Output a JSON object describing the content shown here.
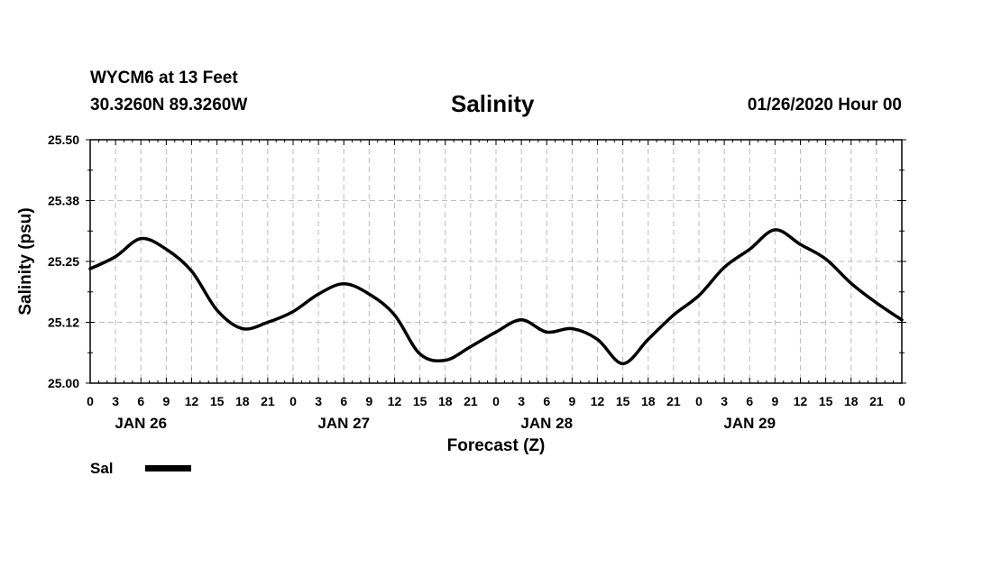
{
  "header": {
    "station": "WYCM6 at 13 Feet",
    "coords": "30.3260N 89.3260W",
    "title": "Salinity",
    "run": "01/26/2020 Hour 00"
  },
  "legend": {
    "label": "Sal"
  },
  "chart_data": {
    "type": "line",
    "title": "Salinity",
    "xlabel": "Forecast (Z)",
    "ylabel": "Salinity (psu)",
    "ylim": [
      25.0,
      25.5
    ],
    "xlim": [
      0,
      96
    ],
    "grid": true,
    "legend_position": "bottom-left",
    "yticks": [
      "25.00",
      "25.12",
      "25.25",
      "25.38",
      "25.50"
    ],
    "xtick_labels": [
      "0",
      "3",
      "6",
      "9",
      "12",
      "15",
      "18",
      "21",
      "0",
      "3",
      "6",
      "9",
      "12",
      "15",
      "18",
      "21",
      "0",
      "3",
      "6",
      "9",
      "12",
      "15",
      "18",
      "21",
      "0",
      "3",
      "6",
      "9",
      "12",
      "15",
      "18",
      "21",
      "0"
    ],
    "day_labels": [
      {
        "hour": 6,
        "label": "JAN 26"
      },
      {
        "hour": 30,
        "label": "JAN 27"
      },
      {
        "hour": 54,
        "label": "JAN 28"
      },
      {
        "hour": 78,
        "label": "JAN 29"
      }
    ],
    "series": [
      {
        "name": "Sal",
        "color": "#000000",
        "x": [
          0,
          3,
          6,
          9,
          12,
          15,
          18,
          21,
          24,
          27,
          30,
          33,
          36,
          39,
          42,
          45,
          48,
          51,
          54,
          57,
          60,
          63,
          66,
          69,
          72,
          75,
          78,
          81,
          84,
          87,
          90,
          93,
          96
        ],
        "values": [
          25.235,
          25.26,
          25.297,
          25.275,
          25.23,
          25.15,
          25.112,
          25.125,
          25.147,
          25.183,
          25.204,
          25.183,
          25.14,
          25.06,
          25.047,
          25.075,
          25.105,
          25.13,
          25.105,
          25.112,
          25.09,
          25.04,
          25.09,
          25.14,
          25.18,
          25.238,
          25.275,
          25.315,
          25.285,
          25.255,
          25.205,
          25.165,
          25.13
        ]
      }
    ]
  }
}
